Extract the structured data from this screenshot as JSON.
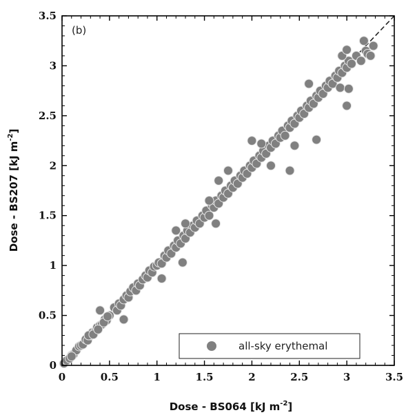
{
  "chart_data": {
    "type": "scatter",
    "panel_label": "(b)",
    "xlabel": "Dose - BS064 [kJ m",
    "ylabel": "Dose - BS207 [kJ m",
    "label_superscript": "-2",
    "label_close": "]",
    "xlim": [
      0,
      3.5
    ],
    "ylim": [
      0,
      3.5
    ],
    "xticks": [
      0,
      0.5,
      1,
      1.5,
      2,
      2.5,
      3,
      3.5
    ],
    "yticks": [
      0,
      0.5,
      1,
      1.5,
      2,
      2.5,
      3,
      3.5
    ],
    "xtick_labels": [
      "0",
      "0.5",
      "1",
      "1.5",
      "2",
      "2.5",
      "3",
      "3.5"
    ],
    "ytick_labels": [
      "0",
      "0.5",
      "1",
      "1.5",
      "2",
      "2.5",
      "3",
      "3.5"
    ],
    "legend": {
      "label": "all-sky erythemal",
      "placement": "bottom-right"
    },
    "reference_line": {
      "style": "dashed",
      "from": [
        0,
        0
      ],
      "to": [
        3.5,
        3.5
      ]
    },
    "colors": {
      "marker": "#808080",
      "marker_edge": "#e6e6e6",
      "line": "#222222"
    },
    "series": [
      {
        "name": "all-sky erythemal",
        "points": [
          [
            0.02,
            0.02
          ],
          [
            0.05,
            0.05
          ],
          [
            0.08,
            0.07
          ],
          [
            0.1,
            0.1
          ],
          [
            0.12,
            0.11
          ],
          [
            0.15,
            0.15
          ],
          [
            0.18,
            0.19
          ],
          [
            0.2,
            0.2
          ],
          [
            0.22,
            0.21
          ],
          [
            0.25,
            0.26
          ],
          [
            0.27,
            0.25
          ],
          [
            0.3,
            0.3
          ],
          [
            0.32,
            0.33
          ],
          [
            0.35,
            0.34
          ],
          [
            0.37,
            0.38
          ],
          [
            0.4,
            0.4
          ],
          [
            0.42,
            0.41
          ],
          [
            0.45,
            0.46
          ],
          [
            0.47,
            0.45
          ],
          [
            0.5,
            0.5
          ],
          [
            0.1,
            0.09
          ],
          [
            0.28,
            0.3
          ],
          [
            0.33,
            0.31
          ],
          [
            0.38,
            0.36
          ],
          [
            0.44,
            0.43
          ],
          [
            0.48,
            0.49
          ],
          [
            0.4,
            0.55
          ],
          [
            0.55,
            0.58
          ],
          [
            0.58,
            0.55
          ],
          [
            0.6,
            0.62
          ],
          [
            0.62,
            0.6
          ],
          [
            0.65,
            0.66
          ],
          [
            0.68,
            0.7
          ],
          [
            0.7,
            0.68
          ],
          [
            0.72,
            0.74
          ],
          [
            0.65,
            0.46
          ],
          [
            0.75,
            0.78
          ],
          [
            0.78,
            0.75
          ],
          [
            0.8,
            0.82
          ],
          [
            0.82,
            0.8
          ],
          [
            0.85,
            0.86
          ],
          [
            0.88,
            0.9
          ],
          [
            0.9,
            0.88
          ],
          [
            0.92,
            0.95
          ],
          [
            0.95,
            0.93
          ],
          [
            0.97,
            0.99
          ],
          [
            1.0,
            1.0
          ],
          [
            1.02,
            1.03
          ],
          [
            1.05,
            1.02
          ],
          [
            1.08,
            1.1
          ],
          [
            1.1,
            1.08
          ],
          [
            1.12,
            1.15
          ],
          [
            1.15,
            1.12
          ],
          [
            1.18,
            1.2
          ],
          [
            1.2,
            1.18
          ],
          [
            1.22,
            1.25
          ],
          [
            1.25,
            1.22
          ],
          [
            1.28,
            1.3
          ],
          [
            1.3,
            1.27
          ],
          [
            1.32,
            1.35
          ],
          [
            1.35,
            1.33
          ],
          [
            1.38,
            1.4
          ],
          [
            1.4,
            1.38
          ],
          [
            1.42,
            1.45
          ],
          [
            1.45,
            1.42
          ],
          [
            1.48,
            1.5
          ],
          [
            1.05,
            0.87
          ],
          [
            1.27,
            1.03
          ],
          [
            1.3,
            1.42
          ],
          [
            1.2,
            1.35
          ],
          [
            1.5,
            1.48
          ],
          [
            1.52,
            1.55
          ],
          [
            1.55,
            1.5
          ],
          [
            1.58,
            1.6
          ],
          [
            1.6,
            1.58
          ],
          [
            1.62,
            1.65
          ],
          [
            1.65,
            1.62
          ],
          [
            1.68,
            1.7
          ],
          [
            1.7,
            1.68
          ],
          [
            1.72,
            1.75
          ],
          [
            1.75,
            1.72
          ],
          [
            1.78,
            1.8
          ],
          [
            1.8,
            1.78
          ],
          [
            1.82,
            1.85
          ],
          [
            1.85,
            1.82
          ],
          [
            1.88,
            1.9
          ],
          [
            1.55,
            1.65
          ],
          [
            1.65,
            1.85
          ],
          [
            1.75,
            1.95
          ],
          [
            1.62,
            1.42
          ],
          [
            1.9,
            1.88
          ],
          [
            1.92,
            1.95
          ],
          [
            1.95,
            1.92
          ],
          [
            1.98,
            2.0
          ],
          [
            2.0,
            1.98
          ],
          [
            2.02,
            2.05
          ],
          [
            2.05,
            2.02
          ],
          [
            2.08,
            2.1
          ],
          [
            2.1,
            2.08
          ],
          [
            2.12,
            2.15
          ],
          [
            2.15,
            2.12
          ],
          [
            2.18,
            2.2
          ],
          [
            2.2,
            2.18
          ],
          [
            2.22,
            2.25
          ],
          [
            2.25,
            2.22
          ],
          [
            2.28,
            2.3
          ],
          [
            2.0,
            2.25
          ],
          [
            2.1,
            2.22
          ],
          [
            2.2,
            2.0
          ],
          [
            2.3,
            2.28
          ],
          [
            2.32,
            2.35
          ],
          [
            2.35,
            2.3
          ],
          [
            2.38,
            2.4
          ],
          [
            2.4,
            2.38
          ],
          [
            2.42,
            2.45
          ],
          [
            2.45,
            2.42
          ],
          [
            2.48,
            2.5
          ],
          [
            2.5,
            2.48
          ],
          [
            2.52,
            2.55
          ],
          [
            2.55,
            2.52
          ],
          [
            2.58,
            2.6
          ],
          [
            2.6,
            2.58
          ],
          [
            2.62,
            2.65
          ],
          [
            2.65,
            2.62
          ],
          [
            2.68,
            2.7
          ],
          [
            2.7,
            2.68
          ],
          [
            2.4,
            1.95
          ],
          [
            2.45,
            2.2
          ],
          [
            2.6,
            2.82
          ],
          [
            2.68,
            2.26
          ],
          [
            2.72,
            2.75
          ],
          [
            2.75,
            2.72
          ],
          [
            2.78,
            2.8
          ],
          [
            2.8,
            2.78
          ],
          [
            2.82,
            2.85
          ],
          [
            2.85,
            2.82
          ],
          [
            2.88,
            2.9
          ],
          [
            2.9,
            2.88
          ],
          [
            2.92,
            2.95
          ],
          [
            2.95,
            2.93
          ],
          [
            2.98,
            3.0
          ],
          [
            3.0,
            2.98
          ],
          [
            3.02,
            3.05
          ],
          [
            3.05,
            3.02
          ],
          [
            2.93,
            2.78
          ],
          [
            3.0,
            2.6
          ],
          [
            2.95,
            3.1
          ],
          [
            3.0,
            3.16
          ],
          [
            3.1,
            3.1
          ],
          [
            3.15,
            3.05
          ],
          [
            3.18,
            3.25
          ],
          [
            3.2,
            3.15
          ],
          [
            3.22,
            3.12
          ],
          [
            3.25,
            3.1
          ],
          [
            3.28,
            3.2
          ],
          [
            3.02,
            2.77
          ]
        ]
      }
    ]
  }
}
